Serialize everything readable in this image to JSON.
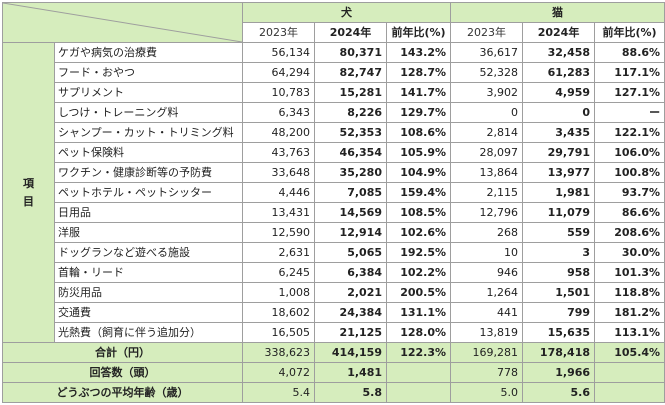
{
  "header": {
    "group_dog": "犬",
    "group_cat": "猫",
    "col_2023": "2023年",
    "col_2024": "2024年",
    "col_ratio": "前年比(%)"
  },
  "side_label": [
    "項",
    "目"
  ],
  "rows": [
    {
      "label": "ケガや病気の治療費",
      "d23": "56,134",
      "d24": "80,371",
      "dr": "143.2%",
      "c23": "36,617",
      "c24": "32,458",
      "cr": "88.6%"
    },
    {
      "label": "フード・おやつ",
      "d23": "64,294",
      "d24": "82,747",
      "dr": "128.7%",
      "c23": "52,328",
      "c24": "61,283",
      "cr": "117.1%"
    },
    {
      "label": "サプリメント",
      "d23": "10,783",
      "d24": "15,281",
      "dr": "141.7%",
      "c23": "3,902",
      "c24": "4,959",
      "cr": "127.1%"
    },
    {
      "label": "しつけ・トレーニング料",
      "d23": "6,343",
      "d24": "8,226",
      "dr": "129.7%",
      "c23": "0",
      "c24": "0",
      "cr": "ー"
    },
    {
      "label": "シャンプー・カット・トリミング料",
      "d23": "48,200",
      "d24": "52,353",
      "dr": "108.6%",
      "c23": "2,814",
      "c24": "3,435",
      "cr": "122.1%"
    },
    {
      "label": "ペット保険料",
      "d23": "43,763",
      "d24": "46,354",
      "dr": "105.9%",
      "c23": "28,097",
      "c24": "29,791",
      "cr": "106.0%"
    },
    {
      "label": "ワクチン・健康診断等の予防費",
      "d23": "33,648",
      "d24": "35,280",
      "dr": "104.9%",
      "c23": "13,864",
      "c24": "13,977",
      "cr": "100.8%"
    },
    {
      "label": "ペットホテル・ペットシッター",
      "d23": "4,446",
      "d24": "7,085",
      "dr": "159.4%",
      "c23": "2,115",
      "c24": "1,981",
      "cr": "93.7%"
    },
    {
      "label": "日用品",
      "d23": "13,431",
      "d24": "14,569",
      "dr": "108.5%",
      "c23": "12,796",
      "c24": "11,079",
      "cr": "86.6%"
    },
    {
      "label": "洋服",
      "d23": "12,590",
      "d24": "12,914",
      "dr": "102.6%",
      "c23": "268",
      "c24": "559",
      "cr": "208.6%"
    },
    {
      "label": "ドッグランなど遊べる施設",
      "d23": "2,631",
      "d24": "5,065",
      "dr": "192.5%",
      "c23": "10",
      "c24": "3",
      "cr": "30.0%"
    },
    {
      "label": "首輪・リード",
      "d23": "6,245",
      "d24": "6,384",
      "dr": "102.2%",
      "c23": "946",
      "c24": "958",
      "cr": "101.3%"
    },
    {
      "label": "防災用品",
      "d23": "1,008",
      "d24": "2,021",
      "dr": "200.5%",
      "c23": "1,264",
      "c24": "1,501",
      "cr": "118.8%"
    },
    {
      "label": "交通費",
      "d23": "18,602",
      "d24": "24,384",
      "dr": "131.1%",
      "c23": "441",
      "c24": "799",
      "cr": "181.2%"
    },
    {
      "label": "光熱費（飼育に伴う追加分）",
      "d23": "16,505",
      "d24": "21,125",
      "dr": "128.0%",
      "c23": "13,819",
      "c24": "15,635",
      "cr": "113.1%"
    }
  ],
  "total": {
    "label": "合計（円）",
    "d23": "338,623",
    "d24": "414,159",
    "dr": "122.3%",
    "c23": "169,281",
    "c24": "178,418",
    "cr": "105.4%"
  },
  "respondents": {
    "label": "回答数（頭）",
    "d23": "4,072",
    "d24": "1,481",
    "c23": "778",
    "c24": "1,966"
  },
  "avg_age": {
    "label": "どうぶつの平均年齢（歳）",
    "d23": "5.4",
    "d24": "5.8",
    "c23": "5.0",
    "c24": "5.6"
  },
  "colors": {
    "header_bg": "#d6edbd",
    "border": "#9e9e9e"
  }
}
